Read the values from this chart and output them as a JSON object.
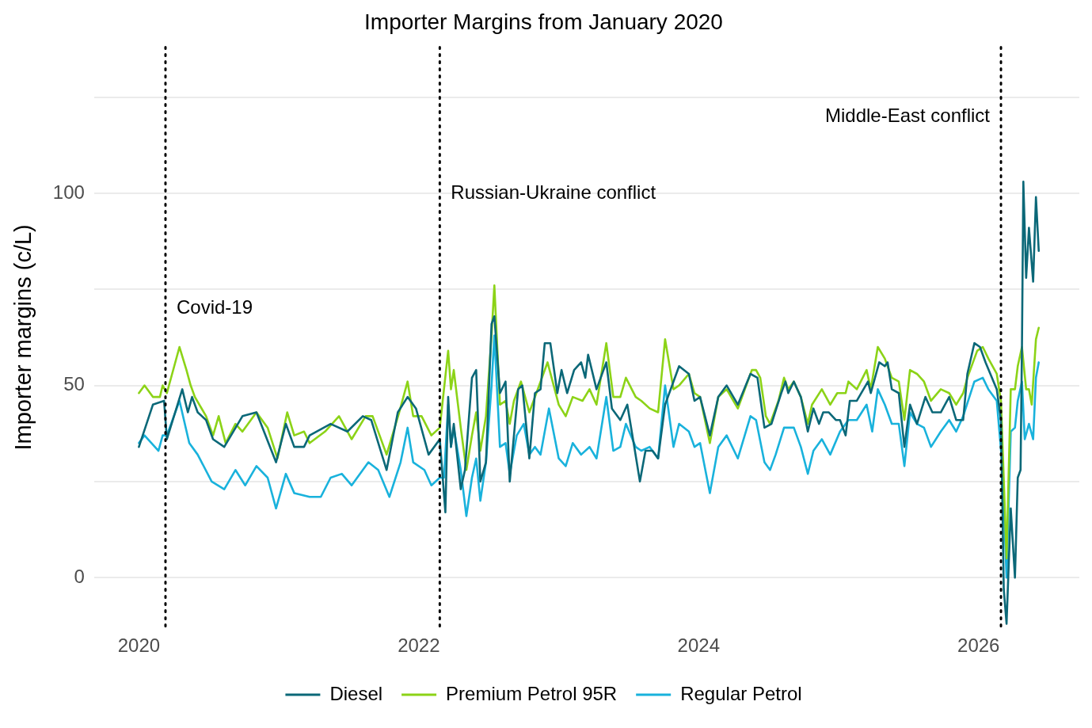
{
  "chart_data": {
    "type": "line",
    "title": "Importer Margins from January 2020",
    "ylabel": "Importer margins (c/L)",
    "xlim": [
      2019.68,
      2026.72
    ],
    "xticks": [
      2020,
      2022,
      2024,
      2026
    ],
    "ylim": [
      -13,
      138
    ],
    "yticks": [
      0,
      {
        "value": 25,
        "label": null
      },
      50,
      {
        "value": 75,
        "label": null
      },
      100,
      {
        "value": 125,
        "label": null
      }
    ],
    "grid": "y",
    "legend": "bottom",
    "marker": "none",
    "line_style": "solid",
    "ref_lines": [
      {
        "axis": "x",
        "value": 2020.19,
        "color": "#000000",
        "line_style": "dotted"
      },
      {
        "axis": "x",
        "value": 2022.15,
        "color": "#000000",
        "line_style": "dotted"
      },
      {
        "axis": "x",
        "value": 2026.16,
        "color": "#000000",
        "line_style": "dotted"
      }
    ],
    "annotations": [
      {
        "text": "Covid-19",
        "x": 2020.19,
        "y": 70
      },
      {
        "text": "Russian-Ukraine conflict",
        "x": 2022.15,
        "y": 100
      },
      {
        "text": "Middle-East conflict",
        "x": 2026.16,
        "y": 120
      }
    ],
    "series": [
      {
        "name": "Diesel",
        "color": "#0b6878",
        "x": [
          2020.0,
          2020.1,
          2020.18,
          2020.2,
          2020.31,
          2020.35,
          2020.38,
          2020.42,
          2020.48,
          2020.53,
          2020.61,
          2020.74,
          2020.84,
          2020.98,
          2021.05,
          2021.11,
          2021.18,
          2021.22,
          2021.37,
          2021.49,
          2021.6,
          2021.66,
          2021.77,
          2021.85,
          2021.92,
          2021.98,
          2022.07,
          2022.15,
          2022.19,
          2022.21,
          2022.23,
          2022.25,
          2022.3,
          2022.33,
          2022.38,
          2022.41,
          2022.44,
          2022.48,
          2022.52,
          2022.54,
          2022.58,
          2022.62,
          2022.65,
          2022.71,
          2022.74,
          2022.79,
          2022.83,
          2022.87,
          2022.9,
          2022.94,
          2022.99,
          2023.02,
          2023.06,
          2023.11,
          2023.16,
          2023.19,
          2023.21,
          2023.27,
          2023.34,
          2023.38,
          2023.44,
          2023.49,
          2023.54,
          2023.58,
          2023.62,
          2023.67,
          2023.71,
          2023.76,
          2023.86,
          2023.93,
          2023.97,
          2024.01,
          2024.08,
          2024.14,
          2024.2,
          2024.28,
          2024.37,
          2024.42,
          2024.47,
          2024.52,
          2024.59,
          2024.62,
          2024.64,
          2024.68,
          2024.73,
          2024.78,
          2024.82,
          2024.86,
          2024.89,
          2024.93,
          2024.98,
          2025.01,
          2025.05,
          2025.08,
          2025.13,
          2025.21,
          2025.23,
          2025.29,
          2025.33,
          2025.35,
          2025.38,
          2025.43,
          2025.47,
          2025.51,
          2025.56,
          2025.62,
          2025.67,
          2025.73,
          2025.79,
          2025.84,
          2025.89,
          2025.92,
          2025.97,
          2026.01,
          2026.05,
          2026.13,
          2026.16,
          2026.18,
          2026.2,
          2026.23,
          2026.26,
          2026.28,
          2026.3,
          2026.31,
          2026.32,
          2026.34,
          2026.36,
          2026.39,
          2026.41,
          2026.43
        ],
        "values": [
          34,
          45,
          46,
          36,
          49,
          43,
          47,
          43,
          41,
          36,
          34,
          42,
          43,
          30,
          40,
          34,
          34,
          37,
          40,
          38,
          42,
          41,
          28,
          43,
          47,
          44,
          32,
          36,
          17,
          47,
          34,
          40,
          23,
          28,
          52,
          54,
          25,
          30,
          66,
          68,
          48,
          51,
          25,
          49,
          50,
          31,
          48,
          49,
          61,
          61,
          48,
          54,
          48,
          54,
          56,
          52,
          58,
          49,
          56,
          44,
          41,
          45,
          34,
          25,
          33,
          33,
          31,
          45,
          55,
          53,
          46,
          47,
          37,
          47,
          50,
          45,
          53,
          52,
          39,
          40,
          48,
          51,
          48,
          51,
          47,
          38,
          44,
          40,
          43,
          43,
          41,
          41,
          37,
          46,
          46,
          51,
          48,
          56,
          55,
          56,
          49,
          48,
          34,
          45,
          40,
          47,
          43,
          43,
          47,
          41,
          41,
          53,
          61,
          60,
          56,
          49,
          41,
          -3,
          -12,
          18,
          0,
          26,
          28,
          60,
          103,
          78,
          91,
          77,
          99,
          85
        ]
      },
      {
        "name": "Premium Petrol 95R",
        "color": "#8cd317",
        "x": [
          2020.0,
          2020.04,
          2020.1,
          2020.15,
          2020.17,
          2020.2,
          2020.29,
          2020.34,
          2020.37,
          2020.4,
          2020.48,
          2020.53,
          2020.57,
          2020.62,
          2020.69,
          2020.74,
          2020.84,
          2020.92,
          2020.99,
          2021.06,
          2021.11,
          2021.18,
          2021.22,
          2021.33,
          2021.43,
          2021.52,
          2021.62,
          2021.67,
          2021.77,
          2021.86,
          2021.92,
          2021.96,
          2022.02,
          2022.09,
          2022.15,
          2022.21,
          2022.23,
          2022.25,
          2022.3,
          2022.34,
          2022.38,
          2022.41,
          2022.44,
          2022.48,
          2022.52,
          2022.54,
          2022.58,
          2022.62,
          2022.65,
          2022.68,
          2022.73,
          2022.79,
          2022.83,
          2022.92,
          2023.0,
          2023.05,
          2023.1,
          2023.17,
          2023.22,
          2023.27,
          2023.34,
          2023.39,
          2023.44,
          2023.48,
          2023.55,
          2023.59,
          2023.65,
          2023.71,
          2023.76,
          2023.82,
          2023.86,
          2023.93,
          2023.97,
          2024.01,
          2024.08,
          2024.14,
          2024.2,
          2024.28,
          2024.38,
          2024.41,
          2024.44,
          2024.48,
          2024.51,
          2024.57,
          2024.61,
          2024.64,
          2024.68,
          2024.73,
          2024.78,
          2024.81,
          2024.88,
          2024.94,
          2024.99,
          2025.05,
          2025.07,
          2025.13,
          2025.2,
          2025.23,
          2025.28,
          2025.33,
          2025.38,
          2025.43,
          2025.47,
          2025.51,
          2025.56,
          2025.61,
          2025.66,
          2025.73,
          2025.79,
          2025.84,
          2025.89,
          2025.92,
          2025.99,
          2026.03,
          2026.07,
          2026.13,
          2026.16,
          2026.2,
          2026.23,
          2026.26,
          2026.28,
          2026.31,
          2026.34,
          2026.36,
          2026.38,
          2026.41,
          2026.43
        ],
        "values": [
          48,
          50,
          47,
          47,
          50,
          48,
          60,
          54,
          50,
          47,
          42,
          37,
          42,
          35,
          40,
          38,
          43,
          39,
          31,
          43,
          37,
          38,
          35,
          38,
          42,
          36,
          42,
          42,
          32,
          43,
          51,
          42,
          42,
          37,
          39,
          59,
          49,
          54,
          39,
          28,
          37,
          43,
          33,
          42,
          63,
          76,
          45,
          46,
          40,
          46,
          51,
          43,
          47,
          56,
          45,
          42,
          47,
          46,
          49,
          45,
          61,
          47,
          47,
          52,
          47,
          46,
          44,
          43,
          62,
          49,
          50,
          53,
          48,
          47,
          35,
          47,
          49,
          44,
          54,
          54,
          52,
          42,
          40,
          46,
          52,
          49,
          51,
          47,
          40,
          45,
          49,
          45,
          48,
          48,
          51,
          49,
          54,
          49,
          60,
          57,
          52,
          51,
          41,
          54,
          53,
          51,
          46,
          49,
          48,
          45,
          48,
          52,
          59,
          60,
          57,
          53,
          46,
          5,
          49,
          49,
          55,
          60,
          49,
          49,
          45,
          62,
          65
        ]
      },
      {
        "name": "Regular Petrol",
        "color": "#19b2dc",
        "x": [
          2020.0,
          2020.04,
          2020.14,
          2020.17,
          2020.2,
          2020.29,
          2020.36,
          2020.42,
          2020.52,
          2020.61,
          2020.69,
          2020.76,
          2020.84,
          2020.92,
          2020.98,
          2021.05,
          2021.11,
          2021.22,
          2021.3,
          2021.37,
          2021.45,
          2021.52,
          2021.64,
          2021.71,
          2021.79,
          2021.87,
          2021.92,
          2021.96,
          2022.04,
          2022.09,
          2022.15,
          2022.18,
          2022.21,
          2022.23,
          2022.25,
          2022.3,
          2022.34,
          2022.38,
          2022.41,
          2022.44,
          2022.48,
          2022.52,
          2022.54,
          2022.58,
          2022.62,
          2022.65,
          2022.7,
          2022.75,
          2022.79,
          2022.83,
          2022.87,
          2022.93,
          2023.0,
          2023.05,
          2023.1,
          2023.16,
          2023.22,
          2023.27,
          2023.34,
          2023.39,
          2023.44,
          2023.48,
          2023.55,
          2023.59,
          2023.65,
          2023.71,
          2023.76,
          2023.82,
          2023.86,
          2023.93,
          2023.97,
          2024.01,
          2024.08,
          2024.14,
          2024.2,
          2024.28,
          2024.37,
          2024.41,
          2024.47,
          2024.51,
          2024.55,
          2024.61,
          2024.64,
          2024.68,
          2024.73,
          2024.78,
          2024.82,
          2024.88,
          2024.94,
          2025.01,
          2025.07,
          2025.13,
          2025.2,
          2025.24,
          2025.28,
          2025.33,
          2025.38,
          2025.43,
          2025.47,
          2025.51,
          2025.56,
          2025.61,
          2025.66,
          2025.73,
          2025.79,
          2025.84,
          2025.89,
          2025.97,
          2026.03,
          2026.07,
          2026.13,
          2026.17,
          2026.2,
          2026.23,
          2026.26,
          2026.28,
          2026.31,
          2026.33,
          2026.36,
          2026.39,
          2026.41,
          2026.43
        ],
        "values": [
          35,
          37,
          33,
          37,
          37,
          46,
          35,
          32,
          25,
          23,
          28,
          24,
          29,
          26,
          18,
          27,
          22,
          21,
          21,
          26,
          27,
          24,
          30,
          28,
          21,
          30,
          39,
          30,
          28,
          24,
          26,
          26,
          45,
          34,
          39,
          28,
          16,
          26,
          31,
          20,
          30,
          50,
          63,
          34,
          35,
          27,
          37,
          40,
          32,
          34,
          32,
          44,
          31,
          29,
          35,
          32,
          34,
          31,
          47,
          33,
          34,
          40,
          34,
          33,
          34,
          31,
          50,
          34,
          40,
          38,
          34,
          35,
          22,
          34,
          37,
          31,
          42,
          41,
          30,
          28,
          32,
          39,
          39,
          39,
          34,
          27,
          33,
          36,
          32,
          38,
          41,
          41,
          45,
          38,
          49,
          45,
          40,
          40,
          29,
          43,
          40,
          39,
          34,
          38,
          41,
          38,
          42,
          51,
          52,
          49,
          46,
          29,
          0,
          38,
          39,
          46,
          51,
          36,
          40,
          36,
          52,
          56
        ]
      }
    ]
  }
}
